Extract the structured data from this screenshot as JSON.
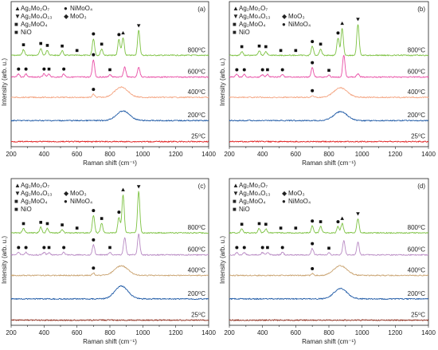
{
  "chart_data": [
    {
      "type": "line",
      "panel_label": "(a)",
      "xlabel": "Raman shift (cm⁻¹)",
      "ylabel": "Intensity (arb. u.)",
      "xlim": [
        200,
        1400
      ],
      "x_ticks": [
        "200",
        "400",
        "600",
        "800",
        "1000",
        "1200",
        "1400"
      ],
      "legend": [
        {
          "symbol": "▲",
          "text": "Ag₂Mo₂O₇"
        },
        {
          "symbol": "▼",
          "text": "Ag₂Mo₄O₁₃"
        },
        {
          "symbol": "■",
          "text": "Ag₂MoO₄"
        },
        {
          "symbol": "■",
          "text": "NiO"
        },
        {
          "symbol": "●",
          "text": "NiMoO₄"
        },
        {
          "symbol": "◆",
          "text": "MoO₃"
        }
      ],
      "series": [
        {
          "temperature": "800⁰C",
          "color": "#7dc242",
          "peaks": [
            [
              275,
              0.18
            ],
            [
              380,
              0.22
            ],
            [
              420,
              0.16
            ],
            [
              510,
              0.14
            ],
            [
              700,
              0.52
            ],
            [
              750,
              0.2
            ],
            [
              855,
              0.5
            ],
            [
              880,
              0.55
            ],
            [
              975,
              0.78
            ]
          ],
          "markers": [
            [
              "sq",
              275
            ],
            [
              "sq",
              380
            ],
            [
              "sq",
              420
            ],
            [
              "sq",
              510
            ],
            [
              "sq",
              600
            ],
            [
              "sq",
              750
            ],
            [
              "dot",
              700
            ],
            [
              "dot",
              855
            ],
            [
              "tri",
              880
            ],
            [
              "inv",
              975
            ]
          ]
        },
        {
          "temperature": "600⁰C",
          "color": "#e94fa6",
          "peaks": [
            [
              245,
              0.1
            ],
            [
              290,
              0.1
            ],
            [
              400,
              0.1
            ],
            [
              430,
              0.1
            ],
            [
              520,
              0.1
            ],
            [
              700,
              0.55
            ],
            [
              800,
              0.08
            ],
            [
              890,
              0.32
            ],
            [
              975,
              0.32
            ]
          ],
          "markers": [
            [
              "dot",
              245
            ],
            [
              "dot",
              290
            ],
            [
              "dot",
              400
            ],
            [
              "sq",
              430
            ],
            [
              "dot",
              520
            ],
            [
              "dot",
              700
            ],
            [
              "sq",
              800
            ]
          ]
        },
        {
          "temperature": "400⁰C",
          "color": "#f4a582",
          "peaks": [
            [
              700,
              0.1
            ],
            [
              870,
              0.32
            ]
          ],
          "markers": [
            [
              "dot",
              700
            ]
          ]
        },
        {
          "temperature": "200⁰C",
          "color": "#1f5aa6",
          "peaks": [
            [
              880,
              0.3
            ]
          ],
          "markers": []
        },
        {
          "temperature": "25⁰C",
          "color": "#e02020",
          "peaks": [],
          "markers": []
        }
      ]
    },
    {
      "type": "line",
      "panel_label": "(b)",
      "xlabel": "Raman shift (cm⁻¹)",
      "ylabel": "Intensity (arb. u.)",
      "xlim": [
        200,
        1400
      ],
      "x_ticks": [
        "200",
        "400",
        "600",
        "800",
        "1000",
        "1200",
        "1400"
      ],
      "legend": [
        {
          "symbol": "▲",
          "text": "Ag₂Mo₂O₇"
        },
        {
          "symbol": "▼",
          "text": "Ag₂Mo₄O₁₃"
        },
        {
          "symbol": "◆",
          "text": "MoO₃"
        },
        {
          "symbol": "■",
          "text": "Ag₂MoO₄"
        },
        {
          "symbol": "●",
          "text": "NiMoO₄"
        },
        {
          "symbol": "■",
          "text": "NiO"
        }
      ],
      "series": [
        {
          "temperature": "800⁰C",
          "color": "#7dc242",
          "peaks": [
            [
              275,
              0.12
            ],
            [
              380,
              0.14
            ],
            [
              420,
              0.12
            ],
            [
              700,
              0.28
            ],
            [
              750,
              0.2
            ],
            [
              855,
              0.55
            ],
            [
              880,
              0.85
            ],
            [
              975,
              0.98
            ]
          ],
          "markers": [
            [
              "sq",
              275
            ],
            [
              "sq",
              380
            ],
            [
              "sq",
              420
            ],
            [
              "sq",
              510
            ],
            [
              "sq",
              600
            ],
            [
              "sq",
              750
            ],
            [
              "dot",
              700
            ],
            [
              "dot",
              855
            ],
            [
              "tri",
              880
            ],
            [
              "inv",
              975
            ]
          ]
        },
        {
          "temperature": "600⁰C",
          "color": "#e94fa6",
          "peaks": [
            [
              245,
              0.08
            ],
            [
              290,
              0.08
            ],
            [
              400,
              0.08
            ],
            [
              430,
              0.08
            ],
            [
              520,
              0.08
            ],
            [
              700,
              0.3
            ],
            [
              800,
              0.06
            ],
            [
              890,
              0.7
            ],
            [
              975,
              0.1
            ]
          ],
          "markers": [
            [
              "dot",
              245
            ],
            [
              "dot",
              290
            ],
            [
              "dot",
              400
            ],
            [
              "sq",
              430
            ],
            [
              "dot",
              520
            ],
            [
              "dot",
              700
            ],
            [
              "sq",
              800
            ]
          ]
        },
        {
          "temperature": "400⁰C",
          "color": "#f4a582",
          "peaks": [
            [
              700,
              0.06
            ],
            [
              870,
              0.3
            ]
          ],
          "markers": [
            [
              "dot",
              700
            ]
          ]
        },
        {
          "temperature": "200⁰C",
          "color": "#1f5aa6",
          "peaks": [
            [
              870,
              0.28
            ]
          ],
          "markers": []
        },
        {
          "temperature": "25⁰C",
          "color": "#e02020",
          "peaks": [],
          "markers": []
        }
      ]
    },
    {
      "type": "line",
      "panel_label": "(c)",
      "xlabel": "Raman shift (cm⁻¹)",
      "ylabel": "Intensity (arb. u.)",
      "xlim": [
        200,
        1400
      ],
      "x_ticks": [
        "200",
        "400",
        "600",
        "800",
        "1000",
        "1200",
        "1400"
      ],
      "legend": [
        {
          "symbol": "▲",
          "text": "Ag₂Mo₂O₇"
        },
        {
          "symbol": "▼",
          "text": "Ag₂Mo₄O₁₃"
        },
        {
          "symbol": "◆",
          "text": "MoO₃"
        },
        {
          "symbol": "■",
          "text": "Ag₂MoO₄"
        },
        {
          "symbol": "●",
          "text": "NiMoO₄"
        },
        {
          "symbol": "■",
          "text": "NiO"
        }
      ],
      "series": [
        {
          "temperature": "800⁰C",
          "color": "#7dc242",
          "peaks": [
            [
              275,
              0.14
            ],
            [
              380,
              0.18
            ],
            [
              420,
              0.14
            ],
            [
              510,
              0.1
            ],
            [
              700,
              0.55
            ],
            [
              750,
              0.3
            ],
            [
              855,
              0.5
            ],
            [
              880,
              1.2
            ],
            [
              975,
              1.3
            ]
          ],
          "markers": [
            [
              "sq",
              275
            ],
            [
              "sq",
              380
            ],
            [
              "sq",
              420
            ],
            [
              "sq",
              510
            ],
            [
              "sq",
              600
            ],
            [
              "sq",
              750
            ],
            [
              "dot",
              700
            ],
            [
              "dot",
              855
            ],
            [
              "tri",
              880
            ],
            [
              "inv",
              975
            ]
          ]
        },
        {
          "temperature": "600⁰C",
          "color": "#b98bc4",
          "peaks": [
            [
              245,
              0.08
            ],
            [
              290,
              0.08
            ],
            [
              400,
              0.08
            ],
            [
              430,
              0.08
            ],
            [
              520,
              0.08
            ],
            [
              700,
              0.32
            ],
            [
              800,
              0.08
            ],
            [
              890,
              0.55
            ],
            [
              975,
              0.65
            ]
          ],
          "markers": [
            [
              "dot",
              245
            ],
            [
              "dot",
              290
            ],
            [
              "dot",
              400
            ],
            [
              "sq",
              430
            ],
            [
              "dot",
              520
            ],
            [
              "dot",
              700
            ],
            [
              "sq",
              800
            ]
          ]
        },
        {
          "temperature": "400⁰C",
          "color": "#caa472",
          "peaks": [
            [
              700,
              0.08
            ],
            [
              870,
              0.3
            ]
          ],
          "markers": [
            [
              "dot",
              700
            ]
          ]
        },
        {
          "temperature": "200⁰C",
          "color": "#1f5aa6",
          "peaks": [
            [
              870,
              0.4
            ]
          ],
          "markers": []
        },
        {
          "temperature": "25⁰C",
          "color": "#8b2a1a",
          "peaks": [],
          "markers": []
        }
      ]
    },
    {
      "type": "line",
      "panel_label": "(d)",
      "xlabel": "Raman shift (cm⁻¹)",
      "ylabel": "Intensity (arb. u.)",
      "xlim": [
        200,
        1400
      ],
      "x_ticks": [
        "200",
        "400",
        "600",
        "800",
        "1000",
        "1200",
        "1400"
      ],
      "legend": [
        {
          "symbol": "▲",
          "text": "Ag₂Mo₂O₇"
        },
        {
          "symbol": "▼",
          "text": "Ag₂Mo₄O₁₃"
        },
        {
          "symbol": "◆",
          "text": "MoO₃"
        },
        {
          "symbol": "■",
          "text": "Ag₂MoO₄"
        },
        {
          "symbol": "●",
          "text": "NiMoO₄"
        },
        {
          "symbol": "■",
          "text": "NiO"
        }
      ],
      "series": [
        {
          "temperature": "800⁰C",
          "color": "#7dc242",
          "peaks": [
            [
              275,
              0.12
            ],
            [
              380,
              0.14
            ],
            [
              420,
              0.12
            ],
            [
              700,
              0.22
            ],
            [
              750,
              0.2
            ],
            [
              855,
              0.2
            ],
            [
              880,
              0.3
            ],
            [
              975,
              0.45
            ]
          ],
          "markers": [
            [
              "sq",
              275
            ],
            [
              "sq",
              380
            ],
            [
              "sq",
              420
            ],
            [
              "sq",
              510
            ],
            [
              "sq",
              600
            ],
            [
              "sq",
              750
            ],
            [
              "dot",
              700
            ],
            [
              "dot",
              855
            ],
            [
              "tri",
              880
            ],
            [
              "inv",
              975
            ]
          ]
        },
        {
          "temperature": "600⁰C",
          "color": "#b98bc4",
          "peaks": [
            [
              245,
              0.08
            ],
            [
              290,
              0.08
            ],
            [
              400,
              0.08
            ],
            [
              430,
              0.08
            ],
            [
              520,
              0.08
            ],
            [
              700,
              0.2
            ],
            [
              800,
              0.06
            ],
            [
              890,
              0.45
            ],
            [
              975,
              0.4
            ]
          ],
          "markers": [
            [
              "dot",
              245
            ],
            [
              "dot",
              290
            ],
            [
              "dot",
              400
            ],
            [
              "sq",
              430
            ],
            [
              "dot",
              520
            ],
            [
              "dot",
              700
            ],
            [
              "sq",
              800
            ]
          ]
        },
        {
          "temperature": "400⁰C",
          "color": "#caa472",
          "peaks": [
            [
              700,
              0.06
            ],
            [
              870,
              0.3
            ]
          ],
          "markers": [
            [
              "dot",
              700
            ]
          ]
        },
        {
          "temperature": "200⁰C",
          "color": "#1f5aa6",
          "peaks": [
            [
              870,
              0.32
            ]
          ],
          "markers": []
        },
        {
          "temperature": "25⁰C",
          "color": "#8b2a1a",
          "peaks": [],
          "markers": []
        }
      ]
    }
  ]
}
